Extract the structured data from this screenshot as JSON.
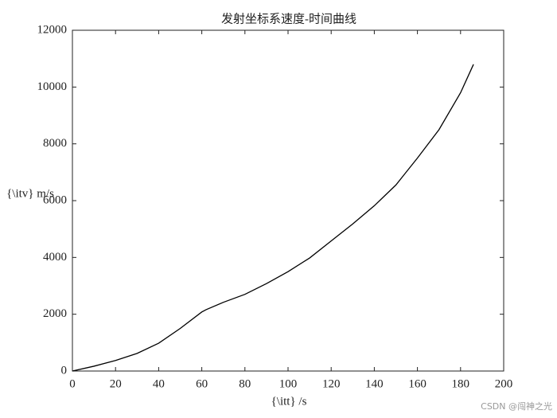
{
  "chart_data": {
    "type": "line",
    "title": "发射坐标系速度-时间曲线",
    "xlabel": "{\\itt} /s",
    "ylabel": "{\\itv} m/s",
    "x": [
      0,
      10,
      20,
      30,
      40,
      50,
      60,
      62,
      70,
      80,
      90,
      100,
      110,
      120,
      130,
      140,
      150,
      160,
      170,
      180,
      186
    ],
    "series": [
      {
        "name": "v",
        "color": "#000000",
        "values": [
          0,
          170,
          370,
          620,
          980,
          1500,
          2080,
          2160,
          2420,
          2700,
          3080,
          3500,
          3980,
          4580,
          5180,
          5820,
          6550,
          7500,
          8500,
          9800,
          10800
        ]
      }
    ],
    "xlim": [
      0,
      200
    ],
    "xticks": [
      0,
      20,
      40,
      60,
      80,
      100,
      120,
      140,
      160,
      180,
      200
    ],
    "ylim": [
      0,
      12000
    ],
    "yticks": [
      0,
      2000,
      4000,
      6000,
      8000,
      10000,
      12000
    ],
    "grid": false
  },
  "watermark": "CSDN @闯神之光"
}
